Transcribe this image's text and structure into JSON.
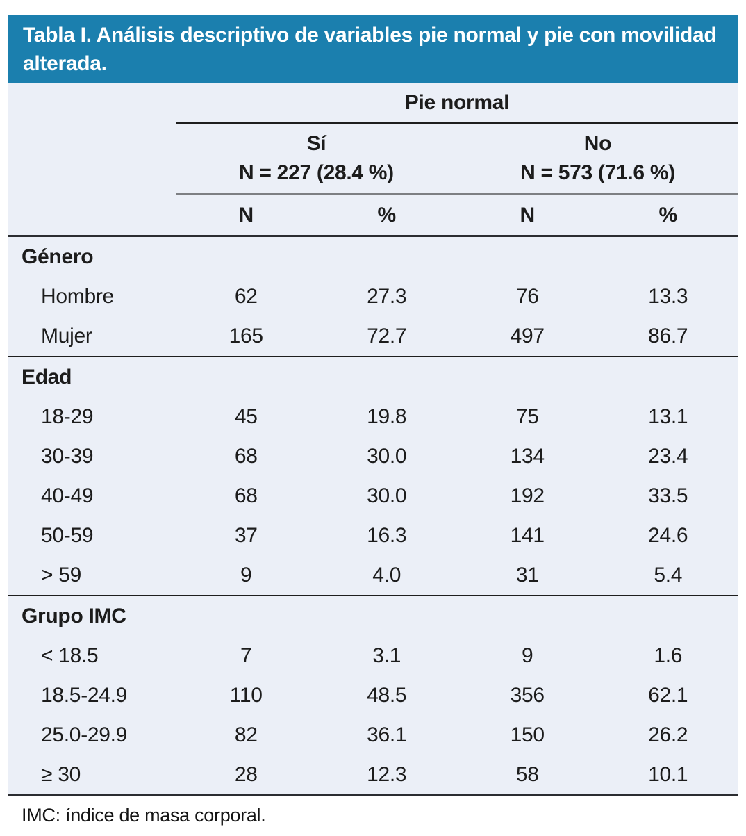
{
  "title": "Tabla I. Análisis descriptivo de variables pie normal y pie con movilidad alterada.",
  "table": {
    "group_header": "Pie normal",
    "col_groups": [
      {
        "label": "Sí",
        "sublabel": "N = 227 (28.4 %)"
      },
      {
        "label": "No",
        "sublabel": "N = 573 (71.6 %)"
      }
    ],
    "sub_headers": [
      "N",
      "%",
      "N",
      "%"
    ],
    "sections": [
      {
        "label": "Género",
        "rows": [
          {
            "label": "Hombre",
            "values": [
              "62",
              "27.3",
              "76",
              "13.3"
            ]
          },
          {
            "label": "Mujer",
            "values": [
              "165",
              "72.7",
              "497",
              "86.7"
            ]
          }
        ]
      },
      {
        "label": "Edad",
        "rows": [
          {
            "label": "18-29",
            "values": [
              "45",
              "19.8",
              "75",
              "13.1"
            ]
          },
          {
            "label": "30-39",
            "values": [
              "68",
              "30.0",
              "134",
              "23.4"
            ]
          },
          {
            "label": "40-49",
            "values": [
              "68",
              "30.0",
              "192",
              "33.5"
            ]
          },
          {
            "label": "50-59",
            "values": [
              "37",
              "16.3",
              "141",
              "24.6"
            ]
          },
          {
            "label": "> 59",
            "values": [
              "9",
              "4.0",
              "31",
              "5.4"
            ]
          }
        ]
      },
      {
        "label": "Grupo IMC",
        "rows": [
          {
            "label": "< 18.5",
            "values": [
              "7",
              "3.1",
              "9",
              "1.6"
            ]
          },
          {
            "label": "18.5-24.9",
            "values": [
              "110",
              "48.5",
              "356",
              "62.1"
            ]
          },
          {
            "label": "25.0-29.9",
            "values": [
              "82",
              "36.1",
              "150",
              "26.2"
            ]
          },
          {
            "label": "≥ 30",
            "values": [
              "28",
              "12.3",
              "58",
              "10.1"
            ]
          }
        ]
      }
    ]
  },
  "footnote": "IMC: índice de masa corporal.",
  "colors": {
    "title_bar_bg": "#1b7fae",
    "table_bg": "#ebeff7"
  }
}
